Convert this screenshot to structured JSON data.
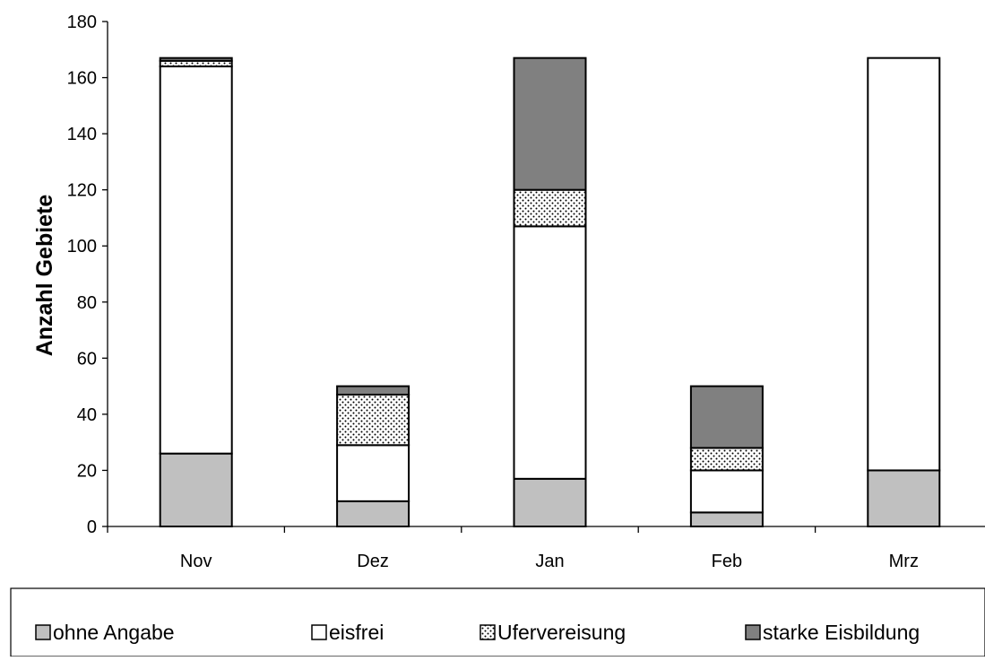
{
  "chart_data": {
    "type": "bar",
    "stacked": true,
    "title": "",
    "xlabel": "",
    "ylabel": "Anzahl Gebiete",
    "ylim": [
      0,
      180
    ],
    "yticks": [
      0,
      20,
      40,
      60,
      80,
      100,
      120,
      140,
      160,
      180
    ],
    "grid": false,
    "legend_position": "bottom",
    "categories": [
      "Nov",
      "Dez",
      "Jan",
      "Feb",
      "Mrz"
    ],
    "series": [
      {
        "name": "ohne Angabe",
        "values": [
          26,
          9,
          17,
          5,
          20
        ],
        "color": "#c0c0c0",
        "pattern": "solid"
      },
      {
        "name": "eisfrei",
        "values": [
          138,
          20,
          90,
          15,
          147
        ],
        "color": "#ffffff",
        "pattern": "solid"
      },
      {
        "name": "Ufervereisung",
        "values": [
          2,
          18,
          13,
          8,
          0
        ],
        "color": "#ffffff",
        "pattern": "dots"
      },
      {
        "name": "starke Eisbildung",
        "values": [
          1,
          3,
          47,
          22,
          0
        ],
        "color": "#808080",
        "pattern": "solid"
      }
    ]
  }
}
